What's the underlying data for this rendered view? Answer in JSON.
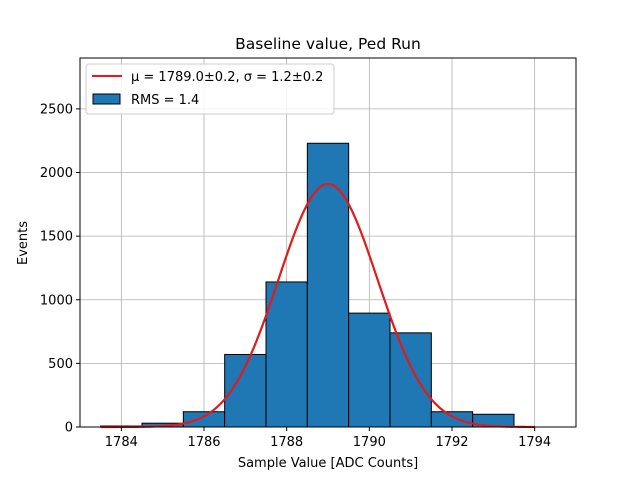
{
  "chart_data": {
    "type": "bar",
    "title": "Baseline value, Ped Run",
    "xlabel": "Sample Value [ADC Counts]",
    "ylabel": "Events",
    "xlim": [
      1783.0,
      1795.0
    ],
    "ylim": [
      0,
      2900
    ],
    "xticks": [
      1784,
      1786,
      1788,
      1790,
      1792,
      1794
    ],
    "yticks": [
      0,
      500,
      1000,
      1500,
      2000,
      2500
    ],
    "grid": true,
    "legend_position": "top-left",
    "histogram": {
      "name": "RMS = 1.4",
      "color": "#1f77b4",
      "edgecolor": "#000000",
      "bin_width": 1,
      "bin_centers": [
        1784,
        1785,
        1786,
        1787,
        1788,
        1789,
        1790,
        1791,
        1792,
        1793
      ],
      "values": [
        8,
        30,
        120,
        570,
        1140,
        2230,
        895,
        740,
        120,
        100
      ]
    },
    "fit": {
      "name_mu": "μ = 1789.0±0.2, ",
      "name_sigma": "σ = 1.2±0.2",
      "color": "#e31a1c",
      "mu": 1789.0,
      "sigma": 1.2,
      "amplitude": 1910,
      "x_range": [
        1783.5,
        1794.0
      ]
    }
  }
}
